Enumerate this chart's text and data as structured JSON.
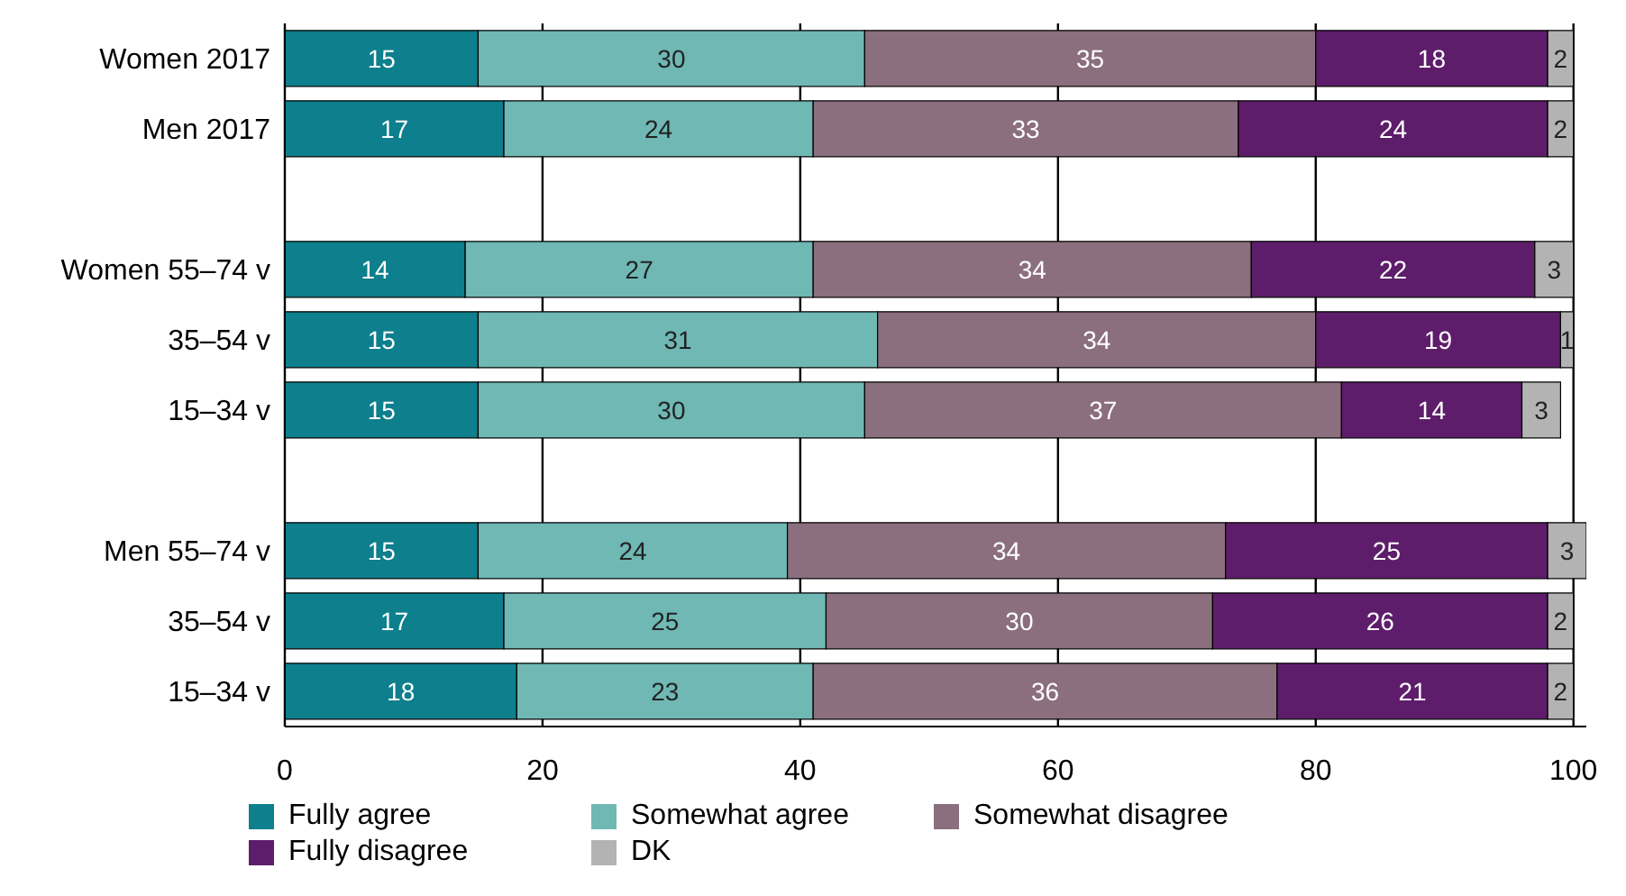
{
  "chart_data": {
    "type": "bar",
    "orientation": "horizontal",
    "stacked": true,
    "categories": [
      "Women 2017",
      "Men 2017",
      null,
      "Women  55–74 v",
      "35–54 v",
      "15–34 v",
      null,
      "Men  55–74 v",
      "35–54 v",
      "15–34 v"
    ],
    "series": [
      {
        "name": "Fully agree",
        "color": "#0e7f8c",
        "values": [
          15,
          17,
          null,
          14,
          15,
          15,
          null,
          15,
          17,
          18
        ]
      },
      {
        "name": "Somewhat agree",
        "color": "#6fb8b4",
        "values": [
          30,
          24,
          null,
          27,
          31,
          30,
          null,
          24,
          25,
          23
        ]
      },
      {
        "name": "Somewhat disagree",
        "color": "#8b6f7e",
        "values": [
          35,
          33,
          null,
          34,
          34,
          37,
          null,
          34,
          30,
          36
        ]
      },
      {
        "name": "Fully disagree",
        "color": "#5e1d6b",
        "values": [
          18,
          24,
          null,
          22,
          19,
          14,
          null,
          25,
          26,
          21
        ]
      },
      {
        "name": "DK",
        "color": "#b3b3b3",
        "values": [
          2,
          2,
          null,
          3,
          1,
          3,
          null,
          3,
          2,
          2
        ]
      }
    ],
    "xlim": [
      0,
      101
    ],
    "xticks": [
      0,
      20,
      40,
      60,
      80,
      100
    ],
    "grid": "x",
    "data_labels": true,
    "legend": "bottom"
  }
}
